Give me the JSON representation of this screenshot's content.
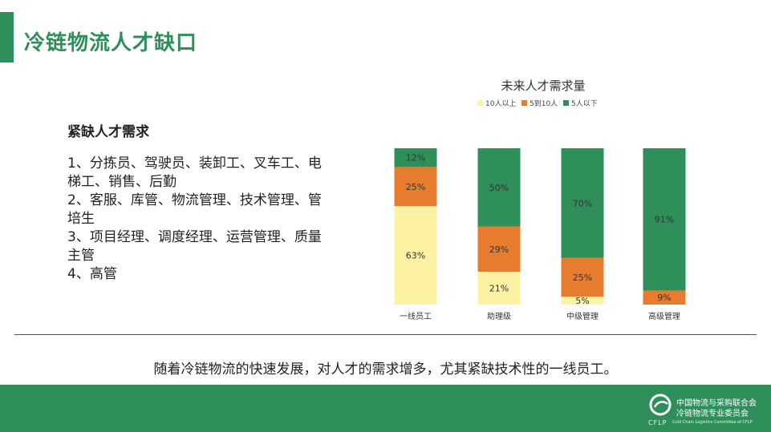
{
  "header": {
    "title": "冷链物流人才缺口"
  },
  "left_panel": {
    "heading": "紧缺人才需求",
    "items": [
      "1、分拣员、驾驶员、装卸工、叉车工、电梯工、销售、后勤",
      "2、客服、库管、物流管理、技术管理、管培生",
      "3、项目经理、调度经理、运营管理、质量主管",
      "4、高管"
    ]
  },
  "chart_data": {
    "type": "bar",
    "stacked": true,
    "percent_stacked": true,
    "title": "未来人才需求量",
    "legend_position": "top",
    "categories": [
      "一线员工",
      "助理级",
      "中级管理",
      "高级管理"
    ],
    "series": [
      {
        "name": "10人以上",
        "color": "#fdf2a2",
        "values": [
          63,
          21,
          5,
          0
        ],
        "labels": [
          "63%",
          "21%",
          "5%",
          ""
        ]
      },
      {
        "name": "5到10人",
        "color": "#e87c2e",
        "values": [
          25,
          29,
          25,
          9
        ],
        "labels": [
          "25%",
          "29%",
          "25%",
          "9%"
        ]
      },
      {
        "name": "5人以下",
        "color": "#2e8f5b",
        "values": [
          12,
          50,
          70,
          91
        ],
        "labels": [
          "12%",
          "50%",
          "70%",
          "91%"
        ]
      }
    ],
    "ylim": [
      0,
      100
    ]
  },
  "conclusion": "随着冷链物流的快速发展，对人才的需求增多，尤其紧缺技术性的一线员工。",
  "footer": {
    "org_line1": "中国物流与采购联合会",
    "org_line2": "冷链物流专业委员会",
    "abbr": "CFLP",
    "sub": "Cold Chain Logistics Committee of CFLP"
  }
}
